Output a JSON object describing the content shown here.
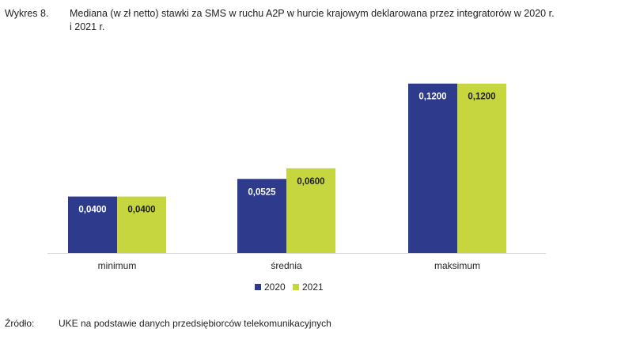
{
  "caption": {
    "label": "Wykres 8.",
    "text": "Mediana (w zł netto) stawki za SMS w ruchu A2P w hurcie krajowym deklarowana przez integratorów w 2020 r. i 2021 r."
  },
  "source": {
    "label": "Źródło:",
    "text": "UKE na podstawie danych przedsiębiorców telekomunikacyjnych"
  },
  "chart_data": {
    "type": "bar",
    "categories": [
      "minimum",
      "średnia",
      "maksimum"
    ],
    "series": [
      {
        "name": "2020",
        "values": [
          0.04,
          0.0525,
          0.12
        ],
        "labels": [
          "0,0400",
          "0,0525",
          "0,1200"
        ],
        "color": "#2e3a8c"
      },
      {
        "name": "2021",
        "values": [
          0.04,
          0.06,
          0.12
        ],
        "labels": [
          "0,0400",
          "0,0600",
          "0,1200"
        ],
        "color": "#c6d63e"
      }
    ],
    "ylim": [
      0,
      0.14
    ],
    "grid": false,
    "legend": "bottom-center",
    "colors": {
      "label_on_dark": "#ffffff",
      "label_on_light": "#1f1f1f",
      "axis": "#d9d9d9"
    }
  }
}
